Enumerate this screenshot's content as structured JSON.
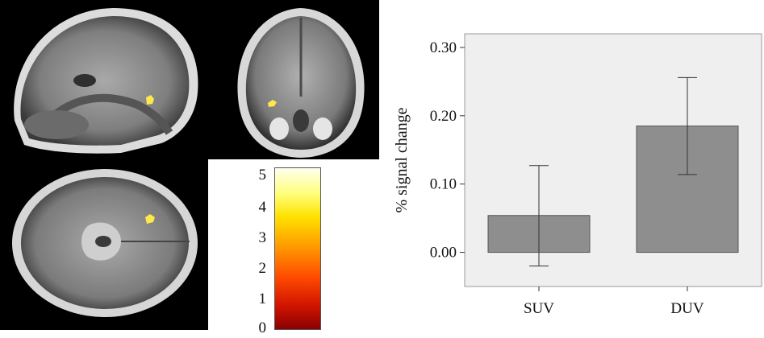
{
  "colors": {
    "bar_fill": "#8e8e8e",
    "plot_background": "#efefef",
    "activation_blob": "#ffe84a"
  },
  "brain_panels": [
    {
      "view": "sagittal",
      "icon": "brain-sagittal-slice"
    },
    {
      "view": "coronal",
      "icon": "brain-coronal-slice"
    },
    {
      "view": "axial",
      "icon": "brain-axial-slice"
    }
  ],
  "colorbar": {
    "ticks": [
      "5",
      "4",
      "3",
      "2",
      "1",
      "0"
    ],
    "range": [
      0,
      5
    ],
    "colormap": "hot (dark red to white)"
  },
  "chart_data": {
    "type": "bar",
    "categories": [
      "SUV",
      "DUV"
    ],
    "values": [
      0.054,
      0.185
    ],
    "error_bars": [
      {
        "low": -0.02,
        "high": 0.127
      },
      {
        "low": 0.114,
        "high": 0.256
      }
    ],
    "ylabel": "% signal change",
    "xlabel": "",
    "ylim": [
      -0.05,
      0.32
    ],
    "yticks": [
      0.0,
      0.1,
      0.2,
      0.3
    ],
    "ytick_labels": [
      "0.00",
      "0.10",
      "0.20",
      "0.30"
    ],
    "grid": false,
    "legend": "none"
  }
}
